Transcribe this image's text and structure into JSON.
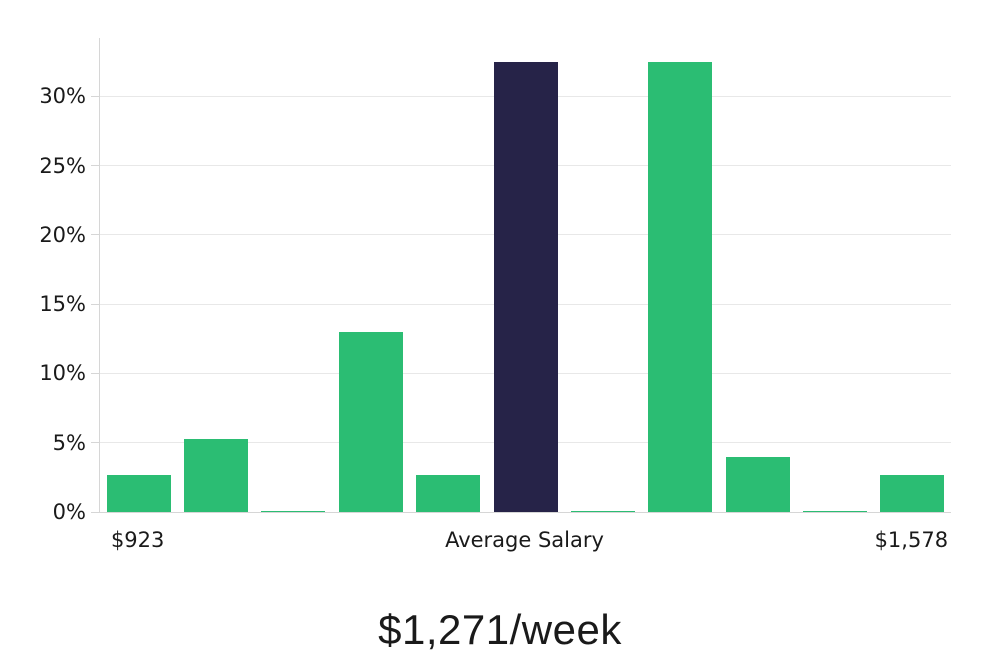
{
  "chart_data": {
    "type": "bar",
    "title": "$1,271/week",
    "xlabel": "",
    "ylabel": "",
    "values": [
      2.7,
      5.3,
      0.1,
      13.0,
      2.7,
      32.5,
      0.1,
      32.5,
      4.0,
      0.1,
      2.7
    ],
    "highlight_index": 5,
    "x_axis_labels": [
      {
        "text": "$923",
        "bar_index": 0
      },
      {
        "text": "Average Salary",
        "bar_index": 5
      },
      {
        "text": "$1,578",
        "bar_index": 10
      }
    ],
    "y_tick_labels": [
      "0%",
      "5%",
      "10%",
      "15%",
      "20%",
      "25%",
      "30%"
    ],
    "y_tick_values": [
      0,
      5,
      10,
      15,
      20,
      25,
      30
    ],
    "ylim": [
      0,
      34.2
    ],
    "grid": true,
    "legend": false,
    "colors": {
      "bar_green": "#2bbd73",
      "bar_navy": "#262348",
      "gridline": "#e8e8e8",
      "axis": "#d6d6d6",
      "text": "#1a1a1a"
    }
  }
}
